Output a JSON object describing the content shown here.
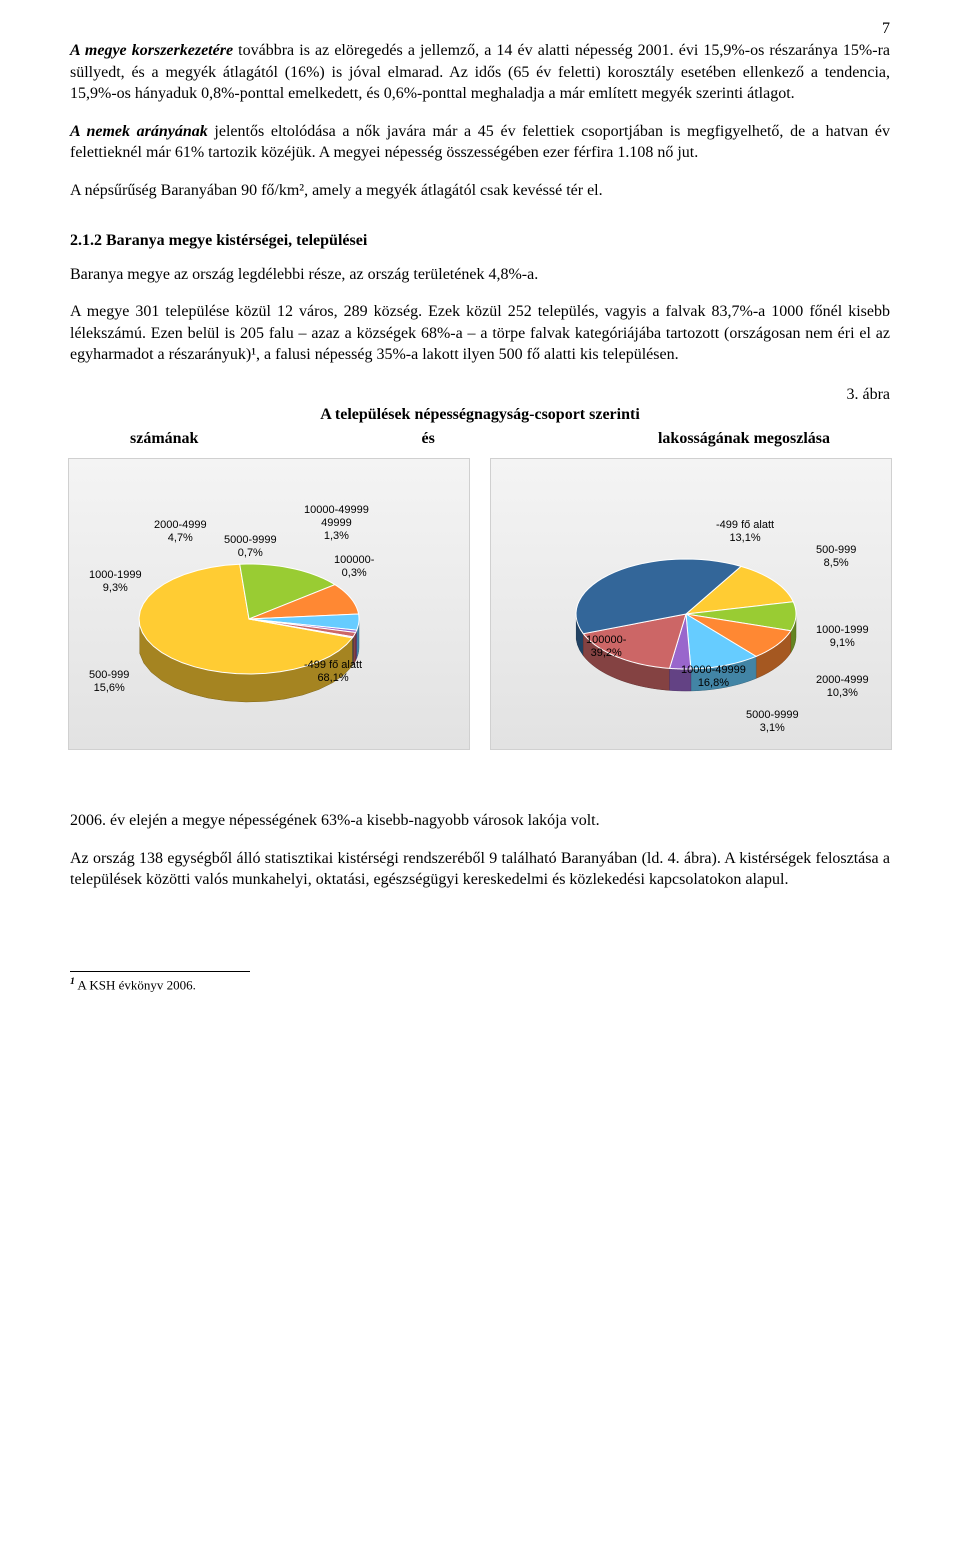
{
  "page_number": "7",
  "paragraphs": {
    "p1_a": "A megye korszerkezetére",
    "p1_b": " továbbra is az elöregedés a jellemző, a 14 év alatti népesség 2001. évi 15,9%-os részaránya 15%-ra süllyedt, és a megyék átlagától (16%) is jóval elmarad. Az idős (65 év feletti) korosztály esetében ellenkező a tendencia, 15,9%-os hányaduk 0,8%-ponttal emelkedett, és 0,6%-ponttal meghaladja a már említett megyék szerinti átlagot.",
    "p2_a": "A nemek arányának",
    "p2_b": " jelentős eltolódása a nők javára már a 45 év felettiek csoportjában is megfigyelhető, de a hatvan év felettieknél már 61% tartozik közéjük. A megyei népesség összességében ezer férfira 1.108 nő jut.",
    "p3": "A népsűrűség Baranyában 90 fő/km², amely a megyék átlagától csak kevéssé tér el.",
    "heading": "2.1.2 Baranya megye kistérségei, települései",
    "p4": "Baranya megye az ország legdélebbi része, az ország területének 4,8%-a.",
    "p5": "A megye 301 települése közül 12 város, 289 község. Ezek közül 252 település, vagyis a falvak 83,7%-a 1000 főnél kisebb lélekszámú. Ezen belül is 205 falu – azaz a községek 68%-a – a törpe falvak kategóriájába tartozott (országosan nem éri el az egyharmadot a részarányuk)¹, a falusi népesség 35%-a lakott ilyen 500 fő alatti kis településen.",
    "fig_label": "3. ábra",
    "chart_title": "A települések népességnagyság-csoport szerinti",
    "sub_left": "számának",
    "sub_mid": "és",
    "sub_right": "lakosságának megoszlása",
    "p6": "2006. év elején a megye népességének 63%-a kisebb-nagyobb városok lakója volt.",
    "p7": "Az ország 138 egységből álló statisztikai kistérségi rendszeréből 9 található Baranyában (ld. 4. ábra). A kistérségek felosztása a települések közötti valós munkahelyi, oktatási, egészségügyi kereskedelmi és közlekedési kapcsolatokon alapul.",
    "footnote_num": "1",
    "footnote_text": " A KSH évkönyv 2006."
  },
  "chart_left": {
    "type": "pie",
    "background_gradient": [
      "#f4f4f4",
      "#e2e2e2"
    ],
    "slices": [
      {
        "label": "-499 fő alatt",
        "pct_label": "68,1%",
        "value": 68.1,
        "color": "#ffcc33"
      },
      {
        "label": "500-999",
        "pct_label": "15,6%",
        "value": 15.6,
        "color": "#99cc33"
      },
      {
        "label": "1000-1999",
        "pct_label": "9,3%",
        "value": 9.3,
        "color": "#ff8833"
      },
      {
        "label": "2000-4999",
        "pct_label": "4,7%",
        "value": 4.7,
        "color": "#66ccff"
      },
      {
        "label": "5000-9999",
        "pct_label": "0,7%",
        "value": 0.7,
        "color": "#9966cc"
      },
      {
        "label": "10000-49999",
        "pct_label": "1,3%",
        "value": 1.3,
        "color": "#cc6666"
      },
      {
        "label": "100000-",
        "pct_label": "0,3%",
        "value": 0.3,
        "color": "#336699"
      }
    ]
  },
  "chart_right": {
    "type": "pie",
    "background_gradient": [
      "#f4f4f4",
      "#e2e2e2"
    ],
    "slices": [
      {
        "label": "-499 fő alatt",
        "pct_label": "13,1%",
        "value": 13.1,
        "color": "#ffcc33"
      },
      {
        "label": "500-999",
        "pct_label": "8,5%",
        "value": 8.5,
        "color": "#99cc33"
      },
      {
        "label": "1000-1999",
        "pct_label": "9,1%",
        "value": 9.1,
        "color": "#ff8833"
      },
      {
        "label": "2000-4999",
        "pct_label": "10,3%",
        "value": 10.3,
        "color": "#66ccff"
      },
      {
        "label": "5000-9999",
        "pct_label": "3,1%",
        "value": 3.1,
        "color": "#9966cc"
      },
      {
        "label": "10000-49999",
        "pct_label": "16,8%",
        "value": 16.8,
        "color": "#cc6666"
      },
      {
        "label": "100000-",
        "pct_label": "39,2%",
        "value": 39.2,
        "color": "#336699"
      }
    ]
  }
}
